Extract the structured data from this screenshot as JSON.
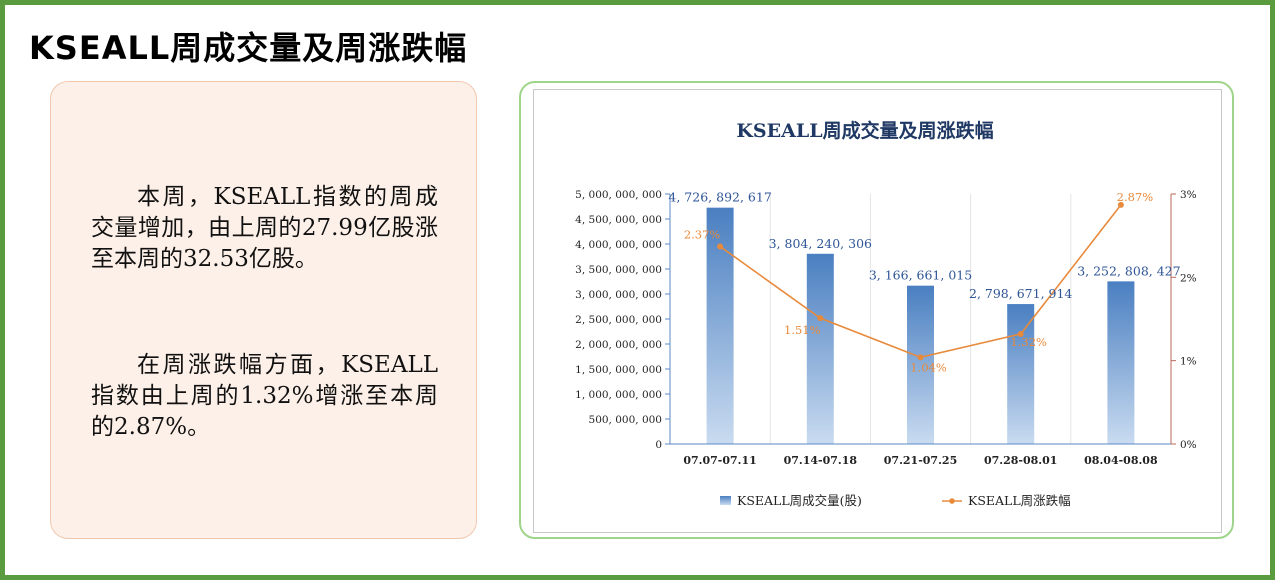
{
  "page": {
    "title": "KSEALL周成交量及周涨跌幅"
  },
  "summary": {
    "paragraph_1": "本周，KSEALL指数的周成交量增加，由上周的27.99亿股涨至本周的32.53亿股。",
    "paragraph_2": "在周涨跌幅方面，KSEALL指数由上周的1.32%增涨至本周的2.87%。"
  },
  "colors": {
    "frame": "#5b9b3f",
    "text_card_bg": "#fdf0e8",
    "chart_card_border": "#9fd58a",
    "bar_top": "#4a7fc1",
    "bar_bottom": "#c9dbf0",
    "line": "#e88a3c",
    "chart_title": "#1f3864",
    "bar_label": "#2f5597"
  },
  "chart_data": {
    "type": "bar",
    "title": "KSEALL周成交量及周涨跌幅",
    "categories": [
      "07.07-07.11",
      "07.14-07.18",
      "07.21-07.25",
      "07.28-08.01",
      "08.04-08.08"
    ],
    "series": [
      {
        "name": "KSEALL周成交量(股)",
        "type": "bar",
        "axis": "left",
        "values": [
          4726892617,
          3804240306,
          3166661015,
          2798671914,
          3252808427
        ],
        "labels": [
          "4, 726, 892, 617",
          "3, 804, 240, 306",
          "3, 166, 661, 015",
          "2, 798, 671, 914",
          "3, 252, 808, 427"
        ]
      },
      {
        "name": "KSEALL周涨跌幅",
        "type": "line",
        "axis": "right",
        "values": [
          2.37,
          1.51,
          1.04,
          1.32,
          2.87
        ],
        "labels": [
          "2.37%",
          "1.51%",
          "1.04%",
          "1.32%",
          "2.87%"
        ]
      }
    ],
    "y_left": {
      "ylim": [
        0,
        5000000000
      ],
      "ticks": [
        "0",
        "500, 000, 000",
        "1, 000, 000, 000",
        "1, 500, 000, 000",
        "2, 000, 000, 000",
        "2, 500, 000, 000",
        "3, 000, 000, 000",
        "3, 500, 000, 000",
        "4, 000, 000, 000",
        "4, 500, 000, 000",
        "5, 000, 000, 000"
      ]
    },
    "y_right": {
      "ylim": [
        0,
        3
      ],
      "ticks": [
        "0%",
        "1%",
        "2%",
        "3%"
      ]
    },
    "grid": "vertical",
    "legend": "bottom"
  }
}
